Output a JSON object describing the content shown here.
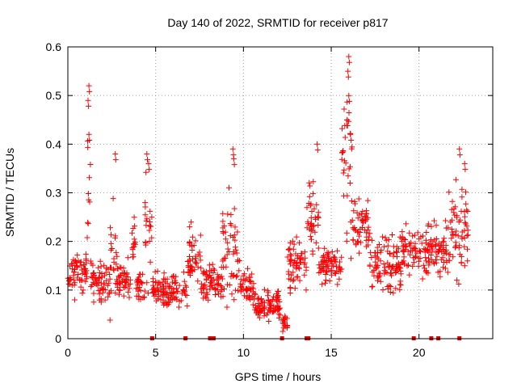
{
  "chart_data": {
    "type": "scatter",
    "title": "Day 140 of 2022, SRMTID for receiver p817",
    "xlabel": "GPS time / hours",
    "ylabel": "SRMTID / TECUs",
    "xlim": [
      0,
      24.2
    ],
    "ylim": [
      0,
      0.6
    ],
    "xticks": [
      0,
      5,
      10,
      15,
      20
    ],
    "xtick_labels": [
      "0",
      "5",
      "10",
      "15",
      "20"
    ],
    "yticks": [
      0,
      0.1,
      0.2,
      0.3,
      0.4,
      0.5,
      0.6
    ],
    "ytick_labels": [
      "0",
      "0.1",
      "0.2",
      "0.3",
      "0.4",
      "0.5",
      "0.6"
    ],
    "grid": true,
    "marker": "+",
    "color": "#ff0000",
    "series": [
      {
        "name": "SRMTID",
        "note": "Dense per-satellite-pass clusters approximated by segment envelopes (center value and spread in TECU over time range in hours)",
        "segments": [
          {
            "x": [
              0.0,
              0.4
            ],
            "y": 0.13,
            "spread": 0.07
          },
          {
            "x": [
              0.4,
              1.1
            ],
            "y": 0.14,
            "spread": 0.06
          },
          {
            "x": [
              1.1,
              1.3
            ],
            "y": 0.3,
            "spread": 0.22
          },
          {
            "x": [
              1.3,
              2.4
            ],
            "y": 0.12,
            "spread": 0.06
          },
          {
            "x": [
              2.4,
              2.8
            ],
            "y": 0.18,
            "spread": 0.16
          },
          {
            "x": [
              2.8,
              3.6
            ],
            "y": 0.12,
            "spread": 0.06
          },
          {
            "x": [
              3.6,
              3.9
            ],
            "y": 0.2,
            "spread": 0.09
          },
          {
            "x": [
              3.9,
              4.4
            ],
            "y": 0.11,
            "spread": 0.05
          },
          {
            "x": [
              4.4,
              4.8
            ],
            "y": 0.22,
            "spread": 0.15
          },
          {
            "x": [
              4.8,
              6.8
            ],
            "y": 0.1,
            "spread": 0.05
          },
          {
            "x": [
              6.8,
              7.6
            ],
            "y": 0.17,
            "spread": 0.09
          },
          {
            "x": [
              7.6,
              8.8
            ],
            "y": 0.12,
            "spread": 0.06
          },
          {
            "x": [
              8.8,
              9.8
            ],
            "y": 0.17,
            "spread": 0.16
          },
          {
            "x": [
              9.8,
              10.6
            ],
            "y": 0.11,
            "spread": 0.05
          },
          {
            "x": [
              10.6,
              12.2
            ],
            "y": 0.07,
            "spread": 0.05
          },
          {
            "x": [
              12.2,
              12.5
            ],
            "y": 0.03,
            "spread": 0.03
          },
          {
            "x": [
              12.5,
              13.6
            ],
            "y": 0.16,
            "spread": 0.08
          },
          {
            "x": [
              13.6,
              14.3
            ],
            "y": 0.24,
            "spread": 0.12
          },
          {
            "x": [
              14.3,
              15.6
            ],
            "y": 0.15,
            "spread": 0.05
          },
          {
            "x": [
              15.6,
              16.2
            ],
            "y": 0.35,
            "spread": 0.22
          },
          {
            "x": [
              16.2,
              17.2
            ],
            "y": 0.23,
            "spread": 0.09
          },
          {
            "x": [
              17.2,
              19.0
            ],
            "y": 0.15,
            "spread": 0.08
          },
          {
            "x": [
              19.0,
              19.8
            ],
            "y": 0.18,
            "spread": 0.07
          },
          {
            "x": [
              19.8,
              21.6
            ],
            "y": 0.18,
            "spread": 0.08
          },
          {
            "x": [
              21.6,
              22.8
            ],
            "y": 0.23,
            "spread": 0.14
          }
        ],
        "peaks": [
          {
            "x": 1.2,
            "y": 0.52
          },
          {
            "x": 1.15,
            "y": 0.49
          },
          {
            "x": 1.2,
            "y": 0.42
          },
          {
            "x": 2.7,
            "y": 0.38
          },
          {
            "x": 4.5,
            "y": 0.38
          },
          {
            "x": 4.6,
            "y": 0.36
          },
          {
            "x": 9.4,
            "y": 0.39
          },
          {
            "x": 9.45,
            "y": 0.37
          },
          {
            "x": 14.2,
            "y": 0.4
          },
          {
            "x": 16.0,
            "y": 0.58
          },
          {
            "x": 15.95,
            "y": 0.55
          },
          {
            "x": 16.0,
            "y": 0.5
          },
          {
            "x": 15.9,
            "y": 0.45
          },
          {
            "x": 16.1,
            "y": 0.42
          },
          {
            "x": 22.3,
            "y": 0.39
          },
          {
            "x": 22.6,
            "y": 0.36
          }
        ]
      }
    ],
    "axis_markers_x": [
      4.8,
      6.7,
      8.1,
      8.3,
      12.2,
      13.6,
      13.7,
      19.7,
      20.7,
      21.1,
      22.3
    ]
  }
}
